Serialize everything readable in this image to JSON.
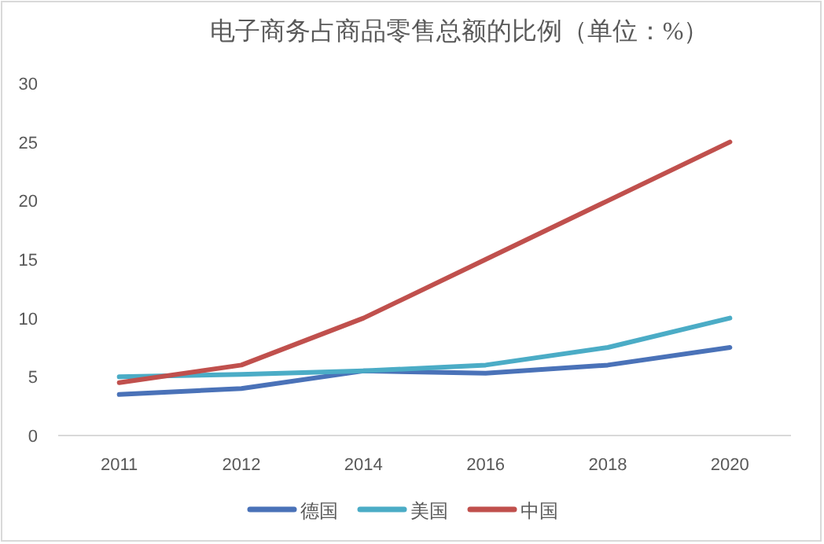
{
  "chart_data": {
    "type": "line",
    "title": "电子商务占商品零售总额的比例（单位：%）",
    "categories": [
      "2011",
      "2012",
      "2014",
      "2016",
      "2018",
      "2020"
    ],
    "series": [
      {
        "name": "德国",
        "color": "#4a72b8",
        "values": [
          3.5,
          4,
          5.5,
          5.3,
          6,
          7.5
        ]
      },
      {
        "name": "美国",
        "color": "#4bacc6",
        "values": [
          5,
          5.2,
          5.5,
          6,
          7.5,
          10
        ]
      },
      {
        "name": "中国",
        "color": "#c0504d",
        "values": [
          4.5,
          6,
          10,
          15,
          20,
          25
        ]
      }
    ],
    "ylim": [
      0,
      30
    ],
    "yticks": [
      0,
      5,
      10,
      15,
      20,
      25,
      30
    ],
    "grid": false,
    "legend": "bottom",
    "marker": "none",
    "line_style": "solid"
  }
}
